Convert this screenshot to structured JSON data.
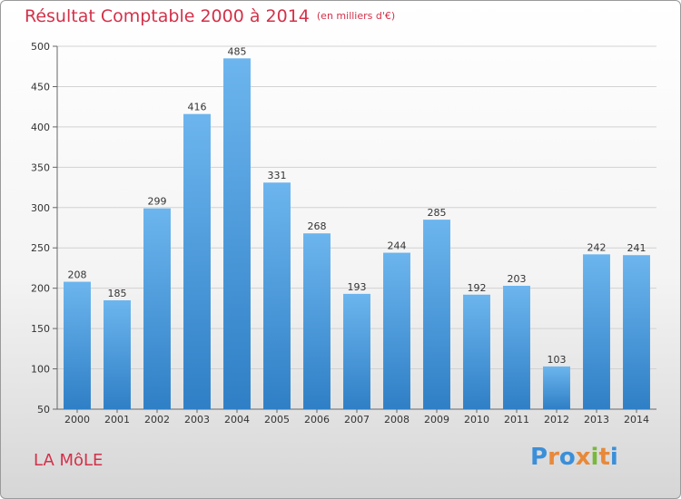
{
  "header": {
    "title": "Résultat Comptable 2000 à 2014",
    "unit": "(en milliers d'€)"
  },
  "commune": "LA MôLE",
  "brand": {
    "logo_text": "Proxiti",
    "letter_colors": [
      "#3b8fd9",
      "#e8893a",
      "#3b8fd9",
      "#e8893a",
      "#79b83b",
      "#e8893a",
      "#3b8fd9"
    ]
  },
  "colors": {
    "bar_light": "#6cb5ee",
    "bar_dark": "#2f7fc6",
    "title": "#d3314a"
  },
  "chart_data": {
    "type": "bar",
    "title": "Résultat Comptable 2000 à 2014",
    "subtitle": "(en milliers d'€)",
    "categories": [
      "2000",
      "2001",
      "2002",
      "2003",
      "2004",
      "2005",
      "2006",
      "2007",
      "2008",
      "2009",
      "2010",
      "2011",
      "2012",
      "2013",
      "2014"
    ],
    "values": [
      208,
      185,
      299,
      416,
      485,
      331,
      268,
      193,
      244,
      285,
      192,
      203,
      103,
      242,
      241
    ],
    "ylim": [
      50,
      500
    ],
    "yticks": [
      50,
      100,
      150,
      200,
      250,
      300,
      350,
      400,
      450,
      500
    ],
    "grid": true,
    "legend": "none"
  }
}
